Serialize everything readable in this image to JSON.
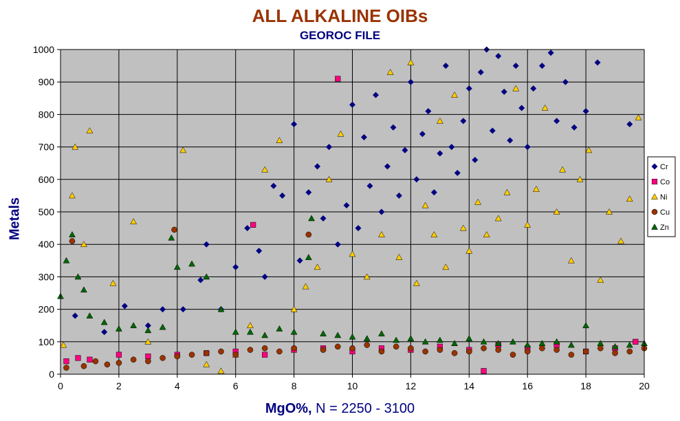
{
  "chart_data": {
    "type": "scatter",
    "title": "ALL ALKALINE OIBs",
    "subtitle": "GEOROC FILE",
    "xlabel": "MgO%,",
    "xlabel_note": "N = 2250 - 3100",
    "ylabel": "Metals",
    "xlim": [
      0,
      20
    ],
    "ylim": [
      0,
      1000
    ],
    "x_ticks": [
      "0",
      "2",
      "4",
      "6",
      "8",
      "10",
      "12",
      "14",
      "16",
      "18",
      "20"
    ],
    "y_ticks": [
      "0",
      "100",
      "200",
      "300",
      "400",
      "500",
      "600",
      "700",
      "800",
      "900",
      "1000"
    ],
    "grid": true,
    "legend_position": "right",
    "colors": {
      "title": "#993300",
      "subtitle": "#000080",
      "axis_label": "#000080",
      "plot_background": "#c0c0c0"
    },
    "series": [
      {
        "name": "Cr",
        "marker": "diamond",
        "color": "#000080",
        "points": [
          [
            0.5,
            180
          ],
          [
            1.5,
            130
          ],
          [
            2.2,
            210
          ],
          [
            3.0,
            150
          ],
          [
            3.5,
            200
          ],
          [
            4.2,
            200
          ],
          [
            4.8,
            290
          ],
          [
            5.0,
            400
          ],
          [
            5.5,
            200
          ],
          [
            6.0,
            330
          ],
          [
            6.4,
            450
          ],
          [
            6.8,
            380
          ],
          [
            7.0,
            300
          ],
          [
            7.3,
            580
          ],
          [
            7.6,
            550
          ],
          [
            8.0,
            770
          ],
          [
            8.2,
            350
          ],
          [
            8.5,
            560
          ],
          [
            8.8,
            640
          ],
          [
            9.0,
            480
          ],
          [
            9.2,
            700
          ],
          [
            9.5,
            400
          ],
          [
            9.8,
            520
          ],
          [
            10.0,
            830
          ],
          [
            10.2,
            450
          ],
          [
            10.4,
            730
          ],
          [
            10.6,
            580
          ],
          [
            10.8,
            860
          ],
          [
            11.0,
            500
          ],
          [
            11.2,
            640
          ],
          [
            11.4,
            760
          ],
          [
            11.6,
            550
          ],
          [
            11.8,
            690
          ],
          [
            12.0,
            900
          ],
          [
            12.2,
            600
          ],
          [
            12.4,
            740
          ],
          [
            12.6,
            810
          ],
          [
            12.8,
            560
          ],
          [
            13.0,
            680
          ],
          [
            13.2,
            950
          ],
          [
            13.4,
            700
          ],
          [
            13.6,
            620
          ],
          [
            13.8,
            780
          ],
          [
            14.0,
            880
          ],
          [
            14.2,
            660
          ],
          [
            14.4,
            930
          ],
          [
            14.6,
            1000
          ],
          [
            14.8,
            750
          ],
          [
            15.0,
            980
          ],
          [
            15.2,
            870
          ],
          [
            15.4,
            720
          ],
          [
            15.6,
            950
          ],
          [
            15.8,
            820
          ],
          [
            16.0,
            700
          ],
          [
            16.2,
            880
          ],
          [
            16.5,
            950
          ],
          [
            16.8,
            990
          ],
          [
            17.0,
            780
          ],
          [
            17.3,
            900
          ],
          [
            17.6,
            760
          ],
          [
            18.0,
            810
          ],
          [
            18.4,
            960
          ],
          [
            19.5,
            770
          ]
        ]
      },
      {
        "name": "Co",
        "marker": "square",
        "color": "#ff0080",
        "points": [
          [
            0.2,
            40
          ],
          [
            0.6,
            50
          ],
          [
            1.0,
            45
          ],
          [
            2.0,
            60
          ],
          [
            3.0,
            55
          ],
          [
            4.0,
            60
          ],
          [
            5.0,
            65
          ],
          [
            6.0,
            70
          ],
          [
            6.6,
            460
          ],
          [
            7.0,
            60
          ],
          [
            8.0,
            75
          ],
          [
            9.0,
            80
          ],
          [
            9.5,
            910
          ],
          [
            10.0,
            70
          ],
          [
            11.0,
            80
          ],
          [
            12.0,
            75
          ],
          [
            13.0,
            85
          ],
          [
            14.0,
            75
          ],
          [
            14.5,
            10
          ],
          [
            15.0,
            90
          ],
          [
            16.0,
            80
          ],
          [
            17.0,
            90
          ],
          [
            18.0,
            70
          ],
          [
            19.0,
            80
          ],
          [
            19.7,
            100
          ]
        ]
      },
      {
        "name": "Ni",
        "marker": "triangle",
        "color": "#ffcc00",
        "points": [
          [
            0.1,
            90
          ],
          [
            0.4,
            550
          ],
          [
            0.5,
            700
          ],
          [
            0.8,
            400
          ],
          [
            1.0,
            750
          ],
          [
            1.8,
            280
          ],
          [
            2.5,
            470
          ],
          [
            3.0,
            100
          ],
          [
            4.2,
            690
          ],
          [
            5.0,
            30
          ],
          [
            5.5,
            10
          ],
          [
            6.0,
            60
          ],
          [
            6.5,
            150
          ],
          [
            7.0,
            630
          ],
          [
            7.5,
            720
          ],
          [
            8.0,
            200
          ],
          [
            8.4,
            270
          ],
          [
            8.8,
            330
          ],
          [
            9.2,
            600
          ],
          [
            9.6,
            740
          ],
          [
            10.0,
            370
          ],
          [
            10.5,
            300
          ],
          [
            11.0,
            430
          ],
          [
            11.3,
            930
          ],
          [
            11.6,
            360
          ],
          [
            12.0,
            960
          ],
          [
            12.2,
            280
          ],
          [
            12.5,
            520
          ],
          [
            12.8,
            430
          ],
          [
            13.0,
            780
          ],
          [
            13.2,
            330
          ],
          [
            13.5,
            860
          ],
          [
            13.8,
            450
          ],
          [
            14.0,
            380
          ],
          [
            14.3,
            530
          ],
          [
            14.6,
            430
          ],
          [
            15.0,
            480
          ],
          [
            15.3,
            560
          ],
          [
            15.6,
            880
          ],
          [
            16.0,
            460
          ],
          [
            16.3,
            570
          ],
          [
            16.6,
            820
          ],
          [
            17.0,
            500
          ],
          [
            17.2,
            630
          ],
          [
            17.5,
            350
          ],
          [
            17.8,
            600
          ],
          [
            18.1,
            690
          ],
          [
            18.5,
            290
          ],
          [
            18.8,
            500
          ],
          [
            19.2,
            410
          ],
          [
            19.5,
            540
          ],
          [
            19.8,
            790
          ]
        ]
      },
      {
        "name": "Cu",
        "marker": "circle",
        "color": "#993300",
        "points": [
          [
            0.2,
            20
          ],
          [
            0.4,
            410
          ],
          [
            0.8,
            25
          ],
          [
            1.2,
            40
          ],
          [
            1.6,
            30
          ],
          [
            2.0,
            35
          ],
          [
            2.5,
            45
          ],
          [
            3.0,
            40
          ],
          [
            3.5,
            50
          ],
          [
            3.9,
            445
          ],
          [
            4.0,
            55
          ],
          [
            4.5,
            60
          ],
          [
            5.0,
            65
          ],
          [
            5.5,
            70
          ],
          [
            6.0,
            60
          ],
          [
            6.5,
            75
          ],
          [
            7.0,
            80
          ],
          [
            7.5,
            70
          ],
          [
            8.0,
            80
          ],
          [
            8.5,
            430
          ],
          [
            9.0,
            75
          ],
          [
            9.5,
            85
          ],
          [
            10.0,
            80
          ],
          [
            10.5,
            90
          ],
          [
            11.0,
            70
          ],
          [
            11.5,
            85
          ],
          [
            12.0,
            80
          ],
          [
            12.5,
            70
          ],
          [
            13.0,
            75
          ],
          [
            13.5,
            65
          ],
          [
            14.0,
            70
          ],
          [
            14.5,
            80
          ],
          [
            15.0,
            75
          ],
          [
            15.5,
            60
          ],
          [
            16.0,
            70
          ],
          [
            16.5,
            80
          ],
          [
            17.0,
            75
          ],
          [
            17.5,
            60
          ],
          [
            18.0,
            70
          ],
          [
            18.5,
            80
          ],
          [
            19.0,
            65
          ],
          [
            19.5,
            70
          ],
          [
            20.0,
            80
          ]
        ]
      },
      {
        "name": "Zn",
        "marker": "triangle",
        "color": "#006600",
        "points": [
          [
            0.0,
            240
          ],
          [
            0.2,
            350
          ],
          [
            0.4,
            430
          ],
          [
            0.6,
            300
          ],
          [
            0.8,
            260
          ],
          [
            1.0,
            180
          ],
          [
            1.5,
            160
          ],
          [
            2.0,
            140
          ],
          [
            2.5,
            150
          ],
          [
            3.0,
            135
          ],
          [
            3.5,
            145
          ],
          [
            3.8,
            420
          ],
          [
            4.0,
            330
          ],
          [
            4.5,
            340
          ],
          [
            5.0,
            300
          ],
          [
            5.5,
            200
          ],
          [
            6.0,
            130
          ],
          [
            6.5,
            130
          ],
          [
            7.0,
            120
          ],
          [
            7.5,
            140
          ],
          [
            8.0,
            130
          ],
          [
            8.5,
            360
          ],
          [
            8.6,
            480
          ],
          [
            9.0,
            125
          ],
          [
            9.5,
            120
          ],
          [
            10.0,
            115
          ],
          [
            10.5,
            110
          ],
          [
            11.0,
            125
          ],
          [
            11.5,
            105
          ],
          [
            12.0,
            110
          ],
          [
            12.5,
            100
          ],
          [
            13.0,
            105
          ],
          [
            13.5,
            95
          ],
          [
            14.0,
            110
          ],
          [
            14.5,
            100
          ],
          [
            15.0,
            95
          ],
          [
            15.5,
            100
          ],
          [
            16.0,
            90
          ],
          [
            16.5,
            95
          ],
          [
            17.0,
            100
          ],
          [
            17.5,
            90
          ],
          [
            18.0,
            150
          ],
          [
            18.5,
            95
          ],
          [
            19.0,
            85
          ],
          [
            19.5,
            90
          ],
          [
            20.0,
            95
          ]
        ]
      }
    ]
  }
}
